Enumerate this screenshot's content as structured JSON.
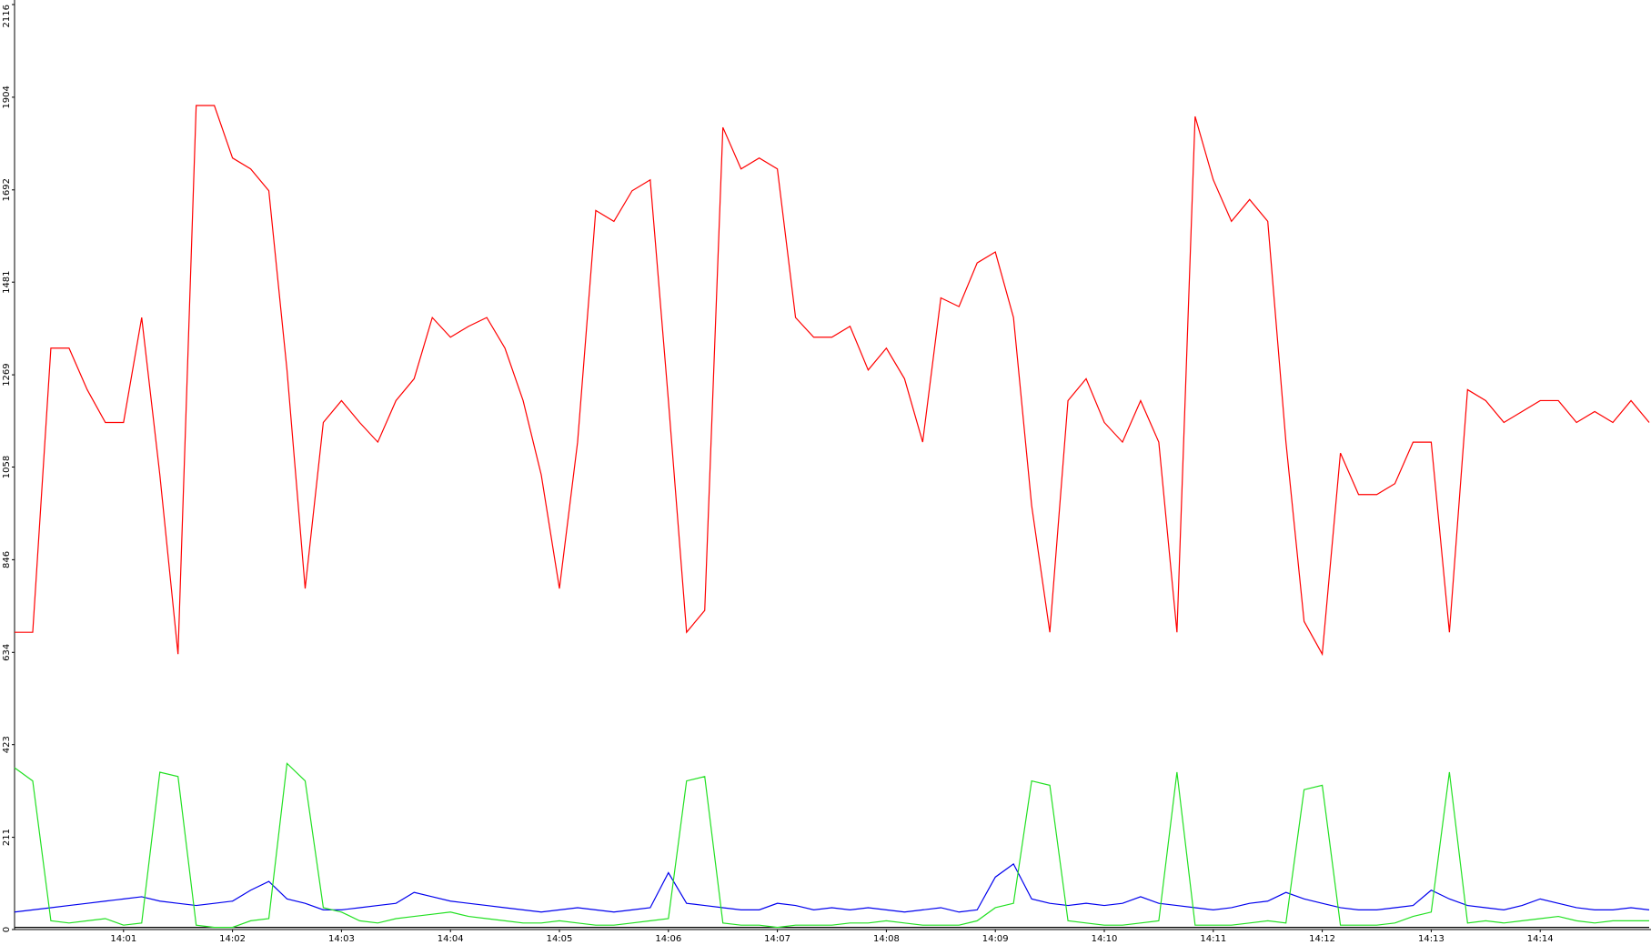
{
  "chart_data": {
    "type": "line",
    "categories": [
      null,
      null,
      null,
      null,
      null,
      null,
      "14:01",
      null,
      null,
      null,
      null,
      null,
      "14:02",
      null,
      null,
      null,
      null,
      null,
      "14:03",
      null,
      null,
      null,
      null,
      null,
      "14:04",
      null,
      null,
      null,
      null,
      null,
      "14:05",
      null,
      null,
      null,
      null,
      null,
      "14:06",
      null,
      null,
      null,
      null,
      null,
      "14:07",
      null,
      null,
      null,
      null,
      null,
      "14:08",
      null,
      null,
      null,
      null,
      null,
      "14:09",
      null,
      null,
      null,
      null,
      null,
      "14:10",
      null,
      null,
      null,
      null,
      null,
      "14:11",
      null,
      null,
      null,
      null,
      null,
      "14:12",
      null,
      null,
      null,
      null,
      null,
      "14:13",
      null,
      null,
      null,
      null,
      null,
      "14:14",
      null,
      null,
      null,
      null,
      null,
      null
    ],
    "series": [
      {
        "color": "#ff0000",
        "values": [
          680,
          680,
          1330,
          1330,
          1235,
          1160,
          1160,
          1400,
          1040,
          630,
          1885,
          1885,
          1765,
          1740,
          1690,
          1280,
          780,
          1160,
          1210,
          1160,
          1115,
          1210,
          1260,
          1400,
          1355,
          1380,
          1400,
          1330,
          1210,
          1040,
          780,
          1115,
          1645,
          1620,
          1690,
          1715,
          1210,
          680,
          730,
          1835,
          1740,
          1765,
          1740,
          1400,
          1355,
          1355,
          1380,
          1280,
          1330,
          1260,
          1115,
          1445,
          1425,
          1525,
          1550,
          1400,
          970,
          680,
          1210,
          1260,
          1160,
          1115,
          1210,
          1115,
          680,
          1860,
          1715,
          1620,
          1670,
          1620,
          1115,
          705,
          630,
          1090,
          995,
          995,
          1020,
          1115,
          1115,
          680,
          1235,
          1210,
          1160,
          1185,
          1210,
          1210,
          1160,
          1185,
          1160,
          1210,
          1160
        ]
      },
      {
        "color": "#22e022",
        "values": [
          370,
          340,
          20,
          15,
          20,
          25,
          10,
          15,
          360,
          350,
          10,
          5,
          5,
          20,
          25,
          380,
          340,
          50,
          40,
          20,
          15,
          25,
          30,
          35,
          40,
          30,
          25,
          20,
          15,
          15,
          20,
          15,
          10,
          10,
          15,
          20,
          25,
          340,
          350,
          15,
          10,
          10,
          5,
          10,
          10,
          10,
          15,
          15,
          20,
          15,
          10,
          10,
          10,
          20,
          50,
          60,
          340,
          330,
          20,
          15,
          10,
          10,
          15,
          20,
          360,
          10,
          10,
          10,
          15,
          20,
          15,
          320,
          330,
          10,
          10,
          10,
          15,
          30,
          40,
          360,
          15,
          20,
          15,
          20,
          25,
          30,
          20,
          15,
          20,
          20,
          20
        ]
      },
      {
        "color": "#0000ee",
        "values": [
          40,
          45,
          50,
          55,
          60,
          65,
          70,
          75,
          65,
          60,
          55,
          60,
          65,
          90,
          110,
          70,
          60,
          45,
          45,
          50,
          55,
          60,
          85,
          75,
          65,
          60,
          55,
          50,
          45,
          40,
          45,
          50,
          45,
          40,
          45,
          50,
          130,
          60,
          55,
          50,
          45,
          45,
          60,
          55,
          45,
          50,
          45,
          50,
          45,
          40,
          45,
          50,
          40,
          45,
          120,
          150,
          70,
          60,
          55,
          60,
          55,
          60,
          75,
          60,
          55,
          50,
          45,
          50,
          60,
          65,
          85,
          70,
          60,
          50,
          45,
          45,
          50,
          55,
          90,
          70,
          55,
          50,
          45,
          55,
          70,
          60,
          50,
          45,
          45,
          50,
          45
        ]
      },
      {
        "color": "#000000",
        "values": [
          5,
          5,
          5,
          5,
          5,
          5,
          5,
          5,
          5,
          5,
          5,
          5,
          5,
          5,
          5,
          5,
          5,
          5,
          5,
          5,
          5,
          5,
          5,
          5,
          5,
          5,
          5,
          5,
          5,
          5,
          5,
          5,
          5,
          5,
          5,
          5,
          5,
          5,
          5,
          5,
          5,
          5,
          5,
          5,
          5,
          5,
          5,
          5,
          5,
          5,
          5,
          5,
          5,
          5,
          5,
          5,
          5,
          5,
          5,
          5,
          5,
          5,
          5,
          5,
          5,
          5,
          5,
          5,
          5,
          5,
          5,
          5,
          5,
          5,
          5,
          5,
          5,
          5,
          5,
          5,
          5,
          5,
          5,
          5,
          5,
          5,
          5,
          5,
          5,
          5,
          5
        ]
      }
    ],
    "ylim": [
      0,
      2116
    ],
    "yticks": [
      0,
      211,
      423,
      634,
      846,
      1058,
      1269,
      1481,
      1692,
      1904,
      2116
    ],
    "grid": false
  }
}
